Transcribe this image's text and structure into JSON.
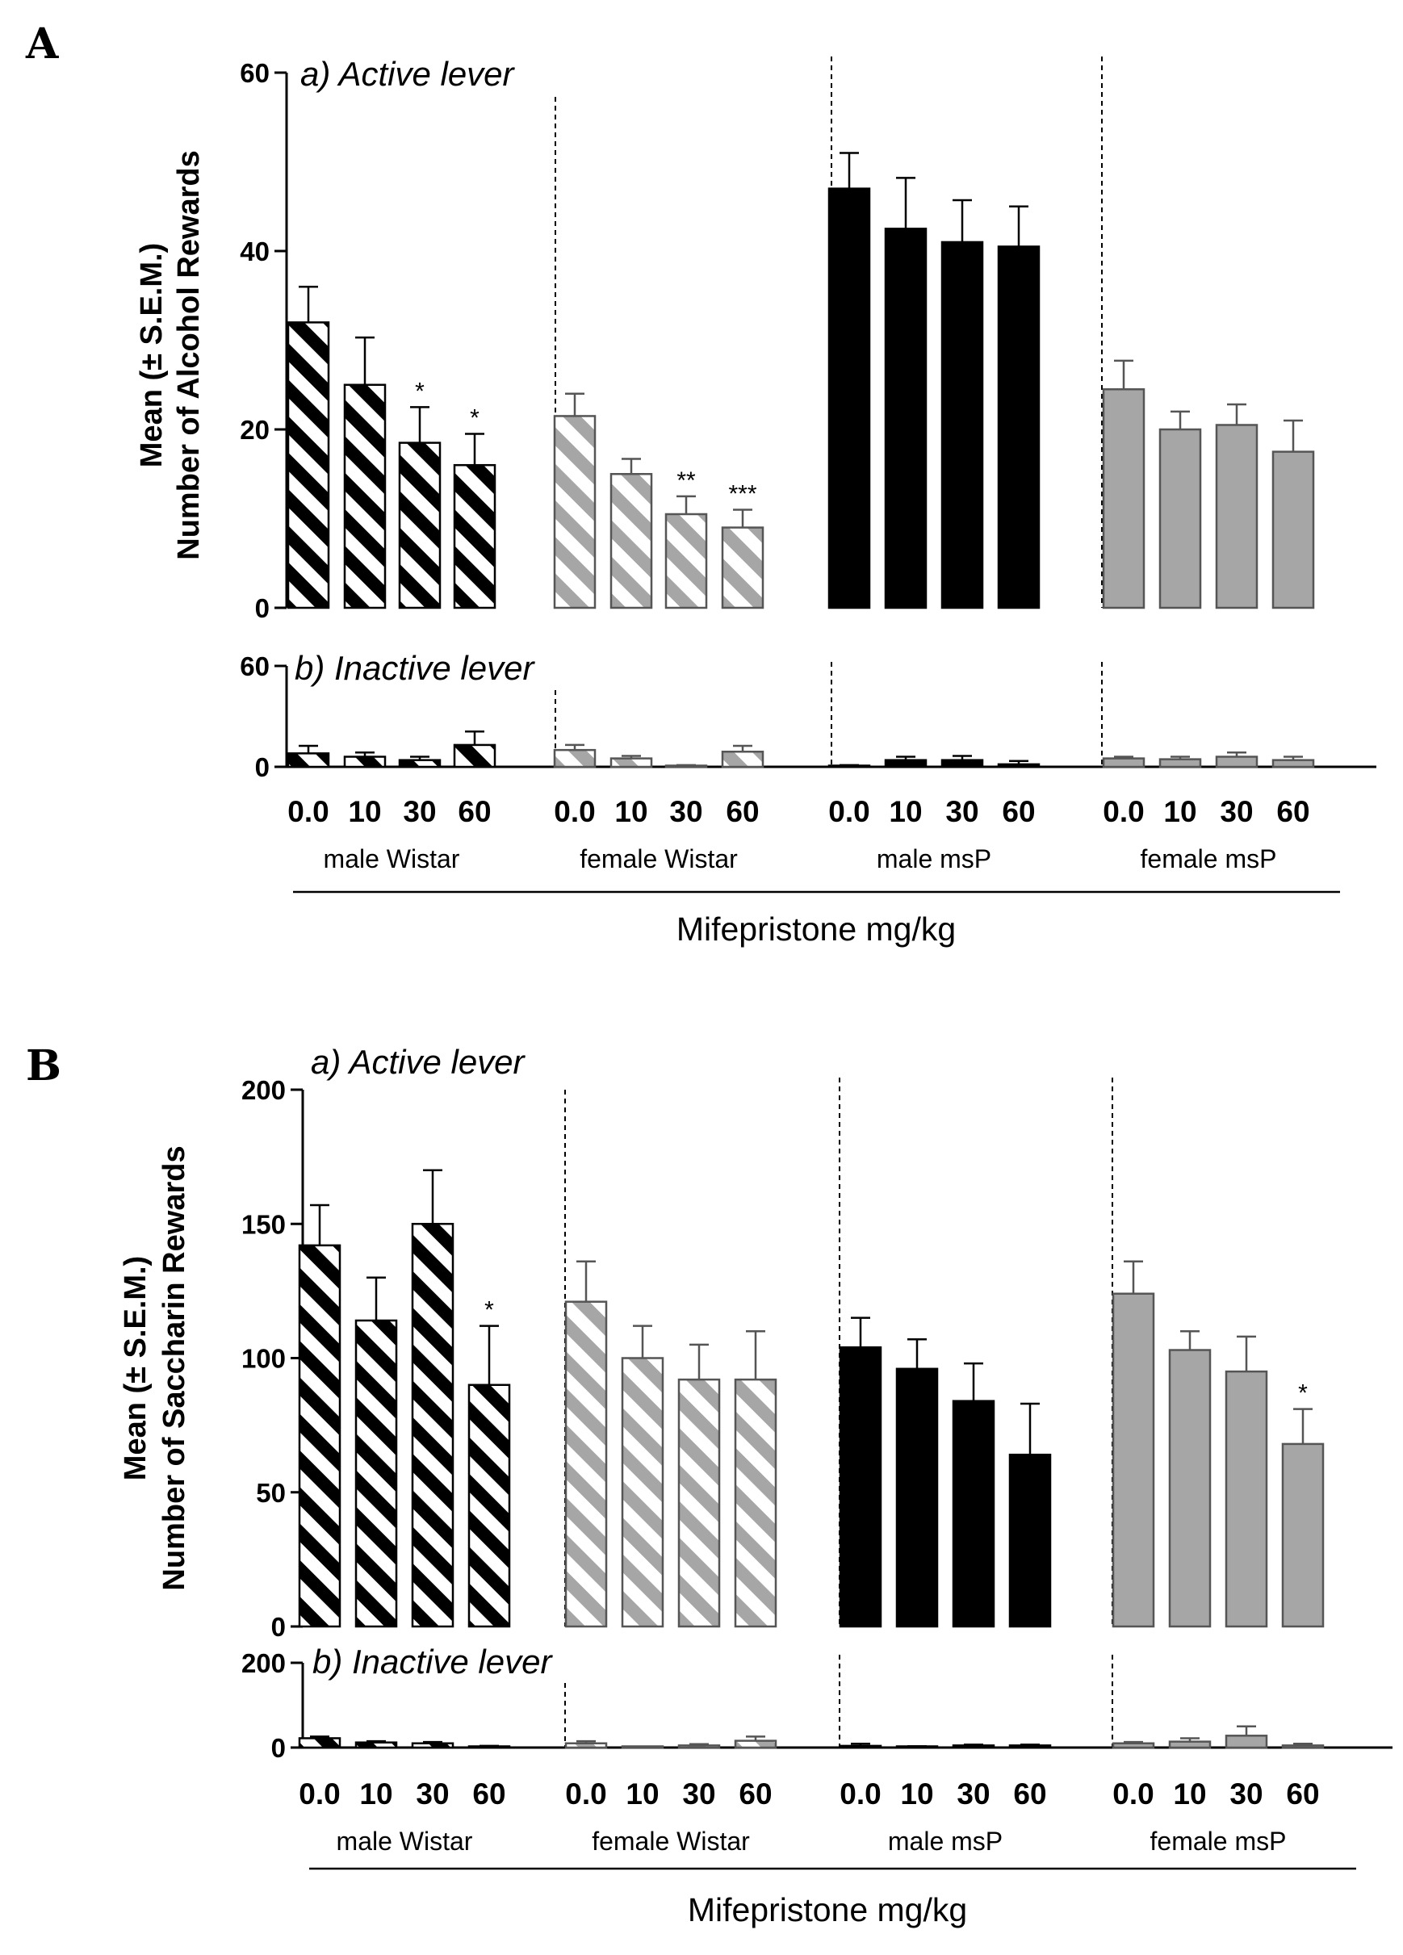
{
  "chart_data": [
    {
      "panel": "A",
      "type": "bar",
      "ylabel_lines": [
        "Mean (± S.E.M.)",
        "Number of Alcohol Rewards"
      ],
      "xlabel": "Mifepristone mg/kg",
      "doses": [
        "0.0",
        "10",
        "30",
        "60"
      ],
      "groups": [
        {
          "name": "male Wistar",
          "fill": "hatch-black"
        },
        {
          "name": "female Wistar",
          "fill": "hatch-grey"
        },
        {
          "name": "male msP",
          "fill": "solid-black"
        },
        {
          "name": "female msP",
          "fill": "solid-grey"
        }
      ],
      "active": {
        "title": "a) Active lever",
        "ylim": [
          0,
          60
        ],
        "yticks": [
          "0",
          "20",
          "40",
          "60"
        ],
        "values": [
          [
            32,
            25,
            18.5,
            16
          ],
          [
            21.5,
            15,
            10.5,
            9
          ],
          [
            47,
            42.5,
            41,
            40.5
          ],
          [
            24.5,
            20,
            20.5,
            17.5
          ]
        ],
        "sem": [
          [
            4,
            5.3,
            4,
            3.5
          ],
          [
            2.5,
            1.7,
            2,
            2
          ],
          [
            4,
            5.7,
            4.7,
            4.5
          ],
          [
            3.2,
            2,
            2.3,
            3.5
          ]
        ],
        "sig": [
          [
            "",
            "",
            "*",
            "*"
          ],
          [
            "",
            "",
            "**",
            "***"
          ],
          [
            "",
            "",
            "",
            ""
          ],
          [
            "",
            "",
            "",
            ""
          ]
        ]
      },
      "inactive": {
        "title": "b) Inactive lever",
        "ylim": [
          0,
          60
        ],
        "yticks": [
          "0",
          "60"
        ],
        "values": [
          [
            8,
            6,
            4,
            13
          ],
          [
            10,
            5,
            0.5,
            9
          ],
          [
            0.5,
            4,
            4,
            1.5
          ],
          [
            5,
            4.5,
            6,
            4
          ]
        ],
        "sem": [
          [
            4.5,
            2.5,
            2,
            8
          ],
          [
            3,
            1.5,
            0.5,
            3.5
          ],
          [
            0.5,
            2,
            2.5,
            2
          ],
          [
            1,
            1.5,
            2.5,
            2
          ]
        ]
      }
    },
    {
      "panel": "B",
      "type": "bar",
      "ylabel_lines": [
        "Mean (± S.E.M.)",
        "Number of Saccharin Rewards"
      ],
      "xlabel": "Mifepristone mg/kg",
      "doses": [
        "0.0",
        "10",
        "30",
        "60"
      ],
      "groups": [
        {
          "name": "male Wistar",
          "fill": "hatch-black"
        },
        {
          "name": "female Wistar",
          "fill": "hatch-grey"
        },
        {
          "name": "male msP",
          "fill": "solid-black"
        },
        {
          "name": "female msP",
          "fill": "solid-grey"
        }
      ],
      "active": {
        "title": "a) Active lever",
        "ylim": [
          0,
          200
        ],
        "yticks": [
          "0",
          "50",
          "100",
          "150",
          "200"
        ],
        "values": [
          [
            142,
            114,
            150,
            90
          ],
          [
            121,
            100,
            92,
            92
          ],
          [
            104,
            96,
            84,
            64
          ],
          [
            124,
            103,
            95,
            68
          ]
        ],
        "sem": [
          [
            15,
            16,
            20,
            22
          ],
          [
            15,
            12,
            13,
            18
          ],
          [
            11,
            11,
            14,
            19
          ],
          [
            12,
            7,
            13,
            13
          ]
        ],
        "sig": [
          [
            "",
            "",
            "",
            "*"
          ],
          [
            "",
            "",
            "",
            ""
          ],
          [
            "",
            "",
            "",
            ""
          ],
          [
            "",
            "",
            "",
            "*"
          ]
        ]
      },
      "inactive": {
        "title": "b) Inactive lever",
        "ylim": [
          0,
          200
        ],
        "yticks": [
          "0",
          "200"
        ],
        "values": [
          [
            22,
            12,
            10,
            2
          ],
          [
            10,
            1,
            5,
            16
          ],
          [
            4,
            2,
            5,
            5
          ],
          [
            10,
            14,
            28,
            5
          ]
        ],
        "sem": [
          [
            4,
            3,
            3,
            2
          ],
          [
            5,
            1,
            3,
            10
          ],
          [
            5,
            1,
            2,
            2
          ],
          [
            3,
            8,
            22,
            4
          ]
        ]
      }
    }
  ]
}
